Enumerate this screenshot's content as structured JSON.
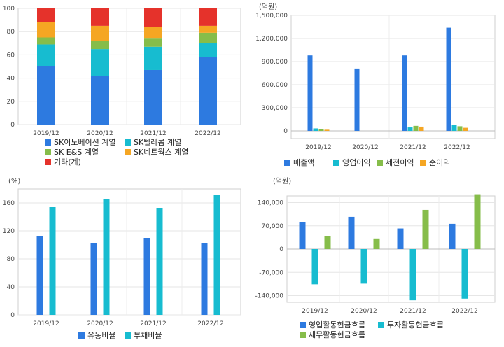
{
  "chart_data": [
    {
      "type": "bar",
      "stacked": true,
      "categories": [
        "2019/12",
        "2020/12",
        "2021/12",
        "2022/12"
      ],
      "ylim": [
        0,
        100
      ],
      "yticks": [
        "0",
        "20",
        "40",
        "60",
        "80",
        "100"
      ],
      "legend_position": "bottom",
      "series": [
        {
          "name": "SK이노베이션 계열",
          "color": "#2d7ae0",
          "values": [
            50,
            42,
            47,
            58
          ]
        },
        {
          "name": "SK텔레콤 계열",
          "color": "#17bcd0",
          "values": [
            19,
            23,
            20,
            12
          ]
        },
        {
          "name": "SK E&S 계열",
          "color": "#86bd4a",
          "values": [
            6,
            7,
            7,
            9
          ]
        },
        {
          "name": "SK네트웍스 계열",
          "color": "#f5a623",
          "values": [
            13,
            13,
            10,
            6
          ]
        },
        {
          "name": "기타(계)",
          "color": "#e5322b",
          "values": [
            12,
            15,
            16,
            15
          ]
        }
      ]
    },
    {
      "type": "bar",
      "unit": "(억원)",
      "categories": [
        "2019/12",
        "2020/12",
        "2021/12",
        "2022/12"
      ],
      "ylim": [
        -100000,
        1500000
      ],
      "yticks": [
        "0",
        "300,000",
        "600,000",
        "900,000",
        "1,200,000",
        "1,500,000"
      ],
      "legend_position": "bottom",
      "series": [
        {
          "name": "매출액",
          "color": "#2d7ae0",
          "values": [
            980000,
            810000,
            980000,
            1340000
          ]
        },
        {
          "name": "영업이익",
          "color": "#17bcd0",
          "values": [
            32000,
            0,
            45000,
            80000
          ]
        },
        {
          "name": "세전이익",
          "color": "#86bd4a",
          "values": [
            22000,
            0,
            65000,
            60000
          ]
        },
        {
          "name": "순이익",
          "color": "#f5a623",
          "values": [
            15000,
            0,
            55000,
            40000
          ]
        }
      ]
    },
    {
      "type": "bar",
      "unit": "(%)",
      "categories": [
        "2019/12",
        "2020/12",
        "2021/12",
        "2022/12"
      ],
      "ylim": [
        0,
        180
      ],
      "yticks": [
        "0",
        "40",
        "80",
        "120",
        "160"
      ],
      "legend_position": "bottom",
      "series": [
        {
          "name": "유동비율",
          "color": "#2d7ae0",
          "values": [
            113,
            102,
            110,
            103
          ]
        },
        {
          "name": "부채비율",
          "color": "#17bcd0",
          "values": [
            154,
            166,
            152,
            171
          ]
        }
      ]
    },
    {
      "type": "bar",
      "unit": "(억원)",
      "categories": [
        "2019/12",
        "2020/12",
        "2021/12",
        "2022/12"
      ],
      "ylim": [
        -160000,
        160000
      ],
      "yticks": [
        "-140,000",
        "-70,000",
        "0",
        "70,000",
        "140,000"
      ],
      "legend_position": "bottom",
      "series": [
        {
          "name": "영업활동현금흐름",
          "color": "#2d7ae0",
          "values": [
            80000,
            97000,
            62000,
            76000
          ]
        },
        {
          "name": "투자활동현금흐름",
          "color": "#17bcd0",
          "values": [
            -106000,
            -104000,
            -154000,
            -149000
          ]
        },
        {
          "name": "재무활동현금흐름",
          "color": "#86bd4a",
          "values": [
            38000,
            32000,
            118000,
            163000
          ]
        }
      ]
    }
  ]
}
